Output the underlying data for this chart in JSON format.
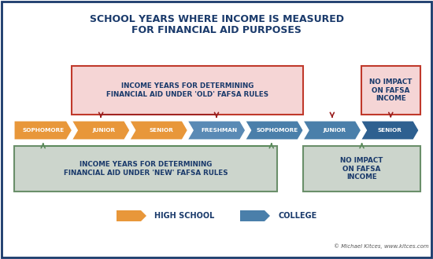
{
  "title_line1": "SCHOOL YEARS WHERE INCOME IS MEASURED",
  "title_line2": "FOR FINANCIAL AID PURPOSES",
  "title_color": "#1a3a6b",
  "background_color": "#ffffff",
  "border_color": "#1a3a6b",
  "orange_color": "#e8973a",
  "blue_color": "#4a7faa",
  "dark_blue_color": "#2e6090",
  "red_arrow_color": "#9b2020",
  "green_arrow_color": "#5a8a5a",
  "old_box_fill": "#f5d5d5",
  "old_box_border": "#c0392b",
  "new_box_fill": "#ccd5cc",
  "new_box_border": "#6a8f6a",
  "no_top_fill": "#f5d5d5",
  "no_top_border": "#c0392b",
  "no_bot_fill": "#ccd5cc",
  "no_bot_border": "#6a8f6a",
  "labels": [
    "SOPHOMORE",
    "JUNIOR",
    "SENIOR",
    "FRESHMAN",
    "SOPHOMORE",
    "JUNIOR",
    "SENIOR"
  ],
  "colors": [
    "#e8973a",
    "#e0891f",
    "#d4781a",
    "#5a8ab0",
    "#4a7faa",
    "#3a6f9a",
    "#2e6090"
  ],
  "old_box_text": "INCOME YEARS FOR DETERMINING\nFINANCIAL AID UNDER 'OLD' FAFSA RULES",
  "new_box_text": "INCOME YEARS FOR DETERMINING\nFINANCIAL AID UNDER 'NEW' FAFSA RULES",
  "no_impact_text": "NO IMPACT\nON FAFSA\nINCOME",
  "legend_hs": "HIGH SCHOOL",
  "legend_col": "COLLEGE",
  "copyright": "© Michael Kitces, www.kitces.com"
}
